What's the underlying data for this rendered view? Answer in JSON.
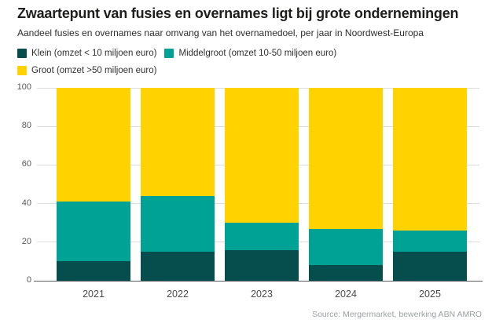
{
  "header": {
    "title": "Zwaartepunt van fusies en overnames ligt bij grote ondernemingen",
    "subtitle": "Aandeel fusies en overnames naar omvang van het overnamedoel, per jaar in Noordwest-Europa"
  },
  "legend": {
    "items": [
      {
        "label": "Klein (omzet < 10 miljoen euro)",
        "color": "#064D4E"
      },
      {
        "label": "Middelgroot (omzet 10-50 miljoen euro)",
        "color": "#00A296"
      },
      {
        "label": "Groot (omzet >50 miljoen euro)",
        "color": "#FFD200"
      }
    ]
  },
  "chart_data": {
    "type": "bar",
    "stacked": true,
    "stacking": "percent",
    "title": "Zwaartepunt van fusies en overnames ligt bij grote ondernemingen",
    "subtitle": "Aandeel fusies en overnames naar omvang van het overnamedoel, per jaar in Noordwest-Europa",
    "categories": [
      "2021",
      "2022",
      "2023",
      "2024",
      "2025"
    ],
    "series": [
      {
        "name": "Klein (omzet < 10 miljoen euro)",
        "color": "#064D4E",
        "values": [
          10,
          15,
          16,
          8,
          15
        ]
      },
      {
        "name": "Middelgroot (omzet 10-50 miljoen euro)",
        "color": "#00A296",
        "values": [
          31,
          29,
          14,
          19,
          11
        ]
      },
      {
        "name": "Groot (omzet >50 miljoen euro)",
        "color": "#FFD200",
        "values": [
          59,
          56,
          70,
          73,
          74
        ]
      }
    ],
    "xlabel": "",
    "ylabel": "",
    "ylim": [
      0,
      100
    ],
    "yticks": [
      0,
      20,
      40,
      60,
      80,
      100
    ],
    "grid": true,
    "legend_position": "top"
  },
  "colors": {
    "klein": "#064D4E",
    "middelgroot": "#00A296",
    "groot": "#FFD200",
    "gridline": "#dcdcdc",
    "axis_line": "#5a5e61"
  },
  "footer": {
    "source": "Source: Mergermarket, bewerking ABN AMRO"
  }
}
